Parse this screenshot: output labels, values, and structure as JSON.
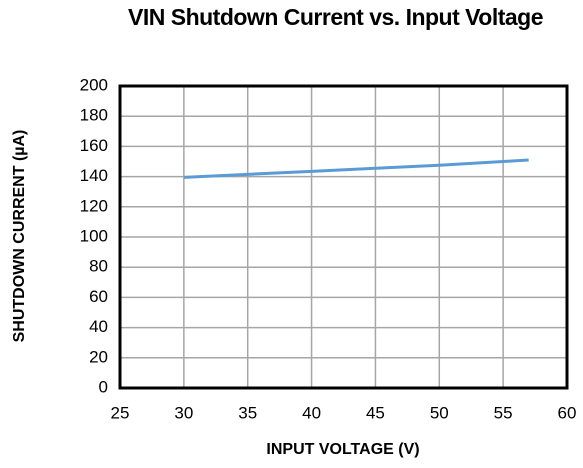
{
  "chart_data": {
    "type": "line",
    "title": "VIN Shutdown Current vs. Input Voltage",
    "x_label": "INPUT VOLTAGE  (V)",
    "y_label": "SHUTDOWN CURRENT  (µA)",
    "x": [
      30,
      35,
      40,
      45,
      50,
      55,
      57
    ],
    "series": [
      {
        "name": "Shutdown Current",
        "color": "#5b9bd5",
        "values": [
          139.5,
          141.5,
          143.5,
          145.5,
          147.5,
          150,
          151
        ]
      }
    ],
    "xlim": [
      25,
      60
    ],
    "xticks": [
      25,
      30,
      35,
      40,
      45,
      50,
      55,
      60
    ],
    "ylim": [
      0,
      200
    ],
    "yticks": [
      0,
      20,
      40,
      60,
      80,
      100,
      120,
      140,
      160,
      180,
      200
    ],
    "grid": true
  }
}
